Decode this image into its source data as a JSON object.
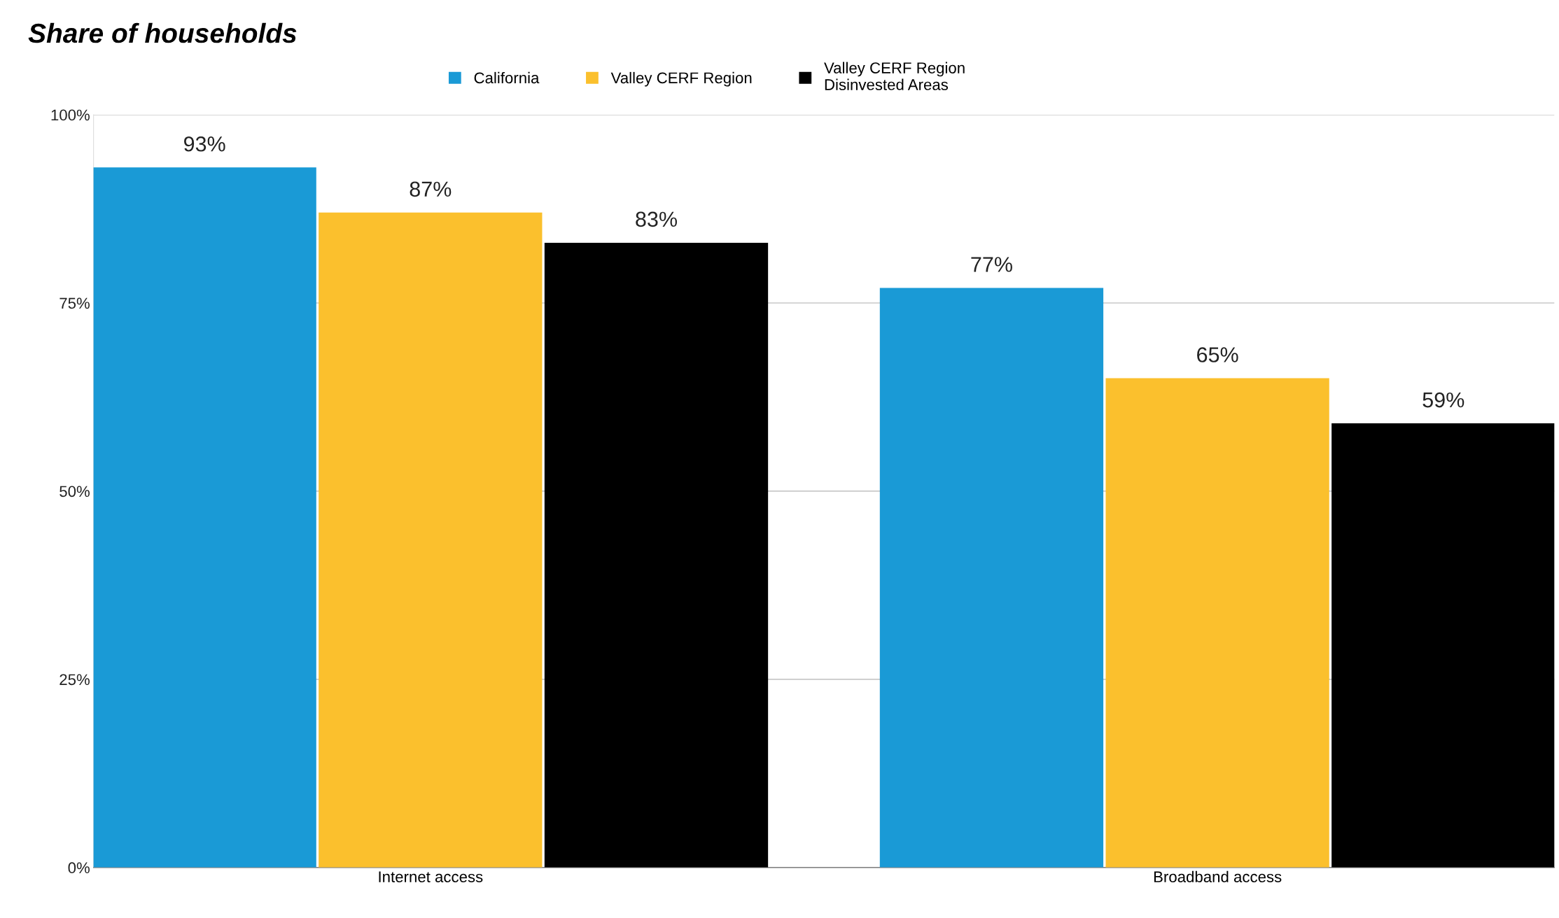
{
  "chart_data": {
    "type": "bar",
    "title": "Share of households",
    "categories": [
      "Internet access",
      "Broadband access"
    ],
    "series": [
      {
        "name": "California",
        "color": "#1a9ad6",
        "values": [
          93,
          77
        ],
        "value_labels": [
          "93%",
          "77%"
        ]
      },
      {
        "name": "Valley CERF Region",
        "color": "#fbc02d",
        "values": [
          87,
          65
        ],
        "value_labels": [
          "87%",
          "65%"
        ]
      },
      {
        "name": "Valley CERF Region\nDisinvested Areas",
        "color": "#000000",
        "values": [
          83,
          59
        ],
        "value_labels": [
          "83%",
          "59%"
        ]
      }
    ],
    "ylim": [
      0,
      100
    ],
    "yticks": [
      {
        "value": 0,
        "label": "0%"
      },
      {
        "value": 25,
        "label": "25%"
      },
      {
        "value": 50,
        "label": "50%"
      },
      {
        "value": 75,
        "label": "75%"
      },
      {
        "value": 100,
        "label": "100%"
      }
    ],
    "grid": "y",
    "legend": "top"
  }
}
